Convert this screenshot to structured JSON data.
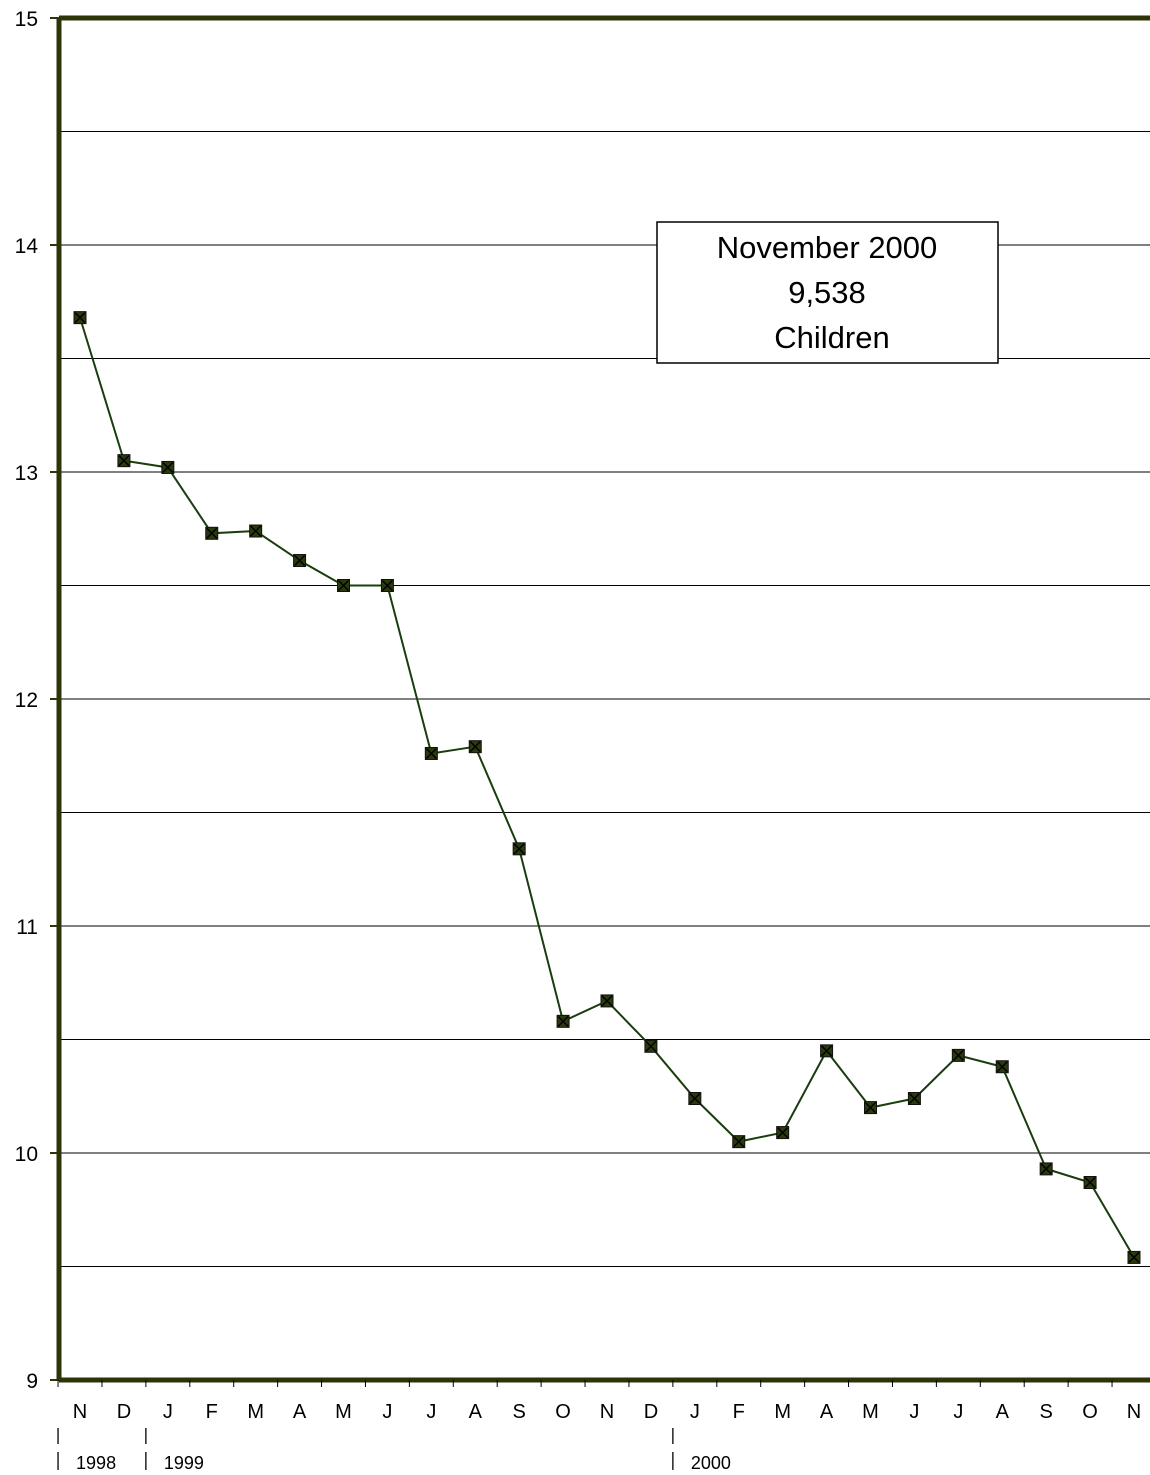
{
  "chart_data": {
    "type": "line",
    "title": "",
    "xlabel": "",
    "ylabel": "",
    "ylim": [
      9,
      15
    ],
    "y_ticks": [
      "9",
      "10",
      "11",
      "12",
      "13",
      "14",
      "15"
    ],
    "grid": "horizontal lines every 0.5",
    "categories": [
      "N",
      "D",
      "J",
      "F",
      "M",
      "A",
      "M",
      "J",
      "J",
      "A",
      "S",
      "O",
      "N",
      "D",
      "J",
      "F",
      "M",
      "A",
      "M",
      "J",
      "J",
      "A",
      "S",
      "O",
      "N"
    ],
    "year_labels": [
      {
        "label": "1998",
        "start_index": 0
      },
      {
        "label": "1999",
        "start_index": 2
      },
      {
        "label": "2000",
        "start_index": 14
      }
    ],
    "series": [
      {
        "values": [
          13.68,
          13.05,
          13.02,
          12.73,
          12.74,
          12.61,
          12.5,
          12.5,
          11.76,
          11.79,
          11.34,
          10.58,
          10.67,
          10.47,
          10.24,
          10.05,
          10.09,
          10.45,
          10.2,
          10.24,
          10.43,
          10.38,
          9.93,
          9.87,
          9.54
        ]
      }
    ],
    "colors": {
      "line": "#1a3d0e",
      "marker": "#2b3a0c",
      "axis": "#2e3308",
      "gridline": "#000000"
    },
    "annotation": {
      "lines": [
        "November 2000",
        "9,538",
        "Children"
      ]
    }
  }
}
